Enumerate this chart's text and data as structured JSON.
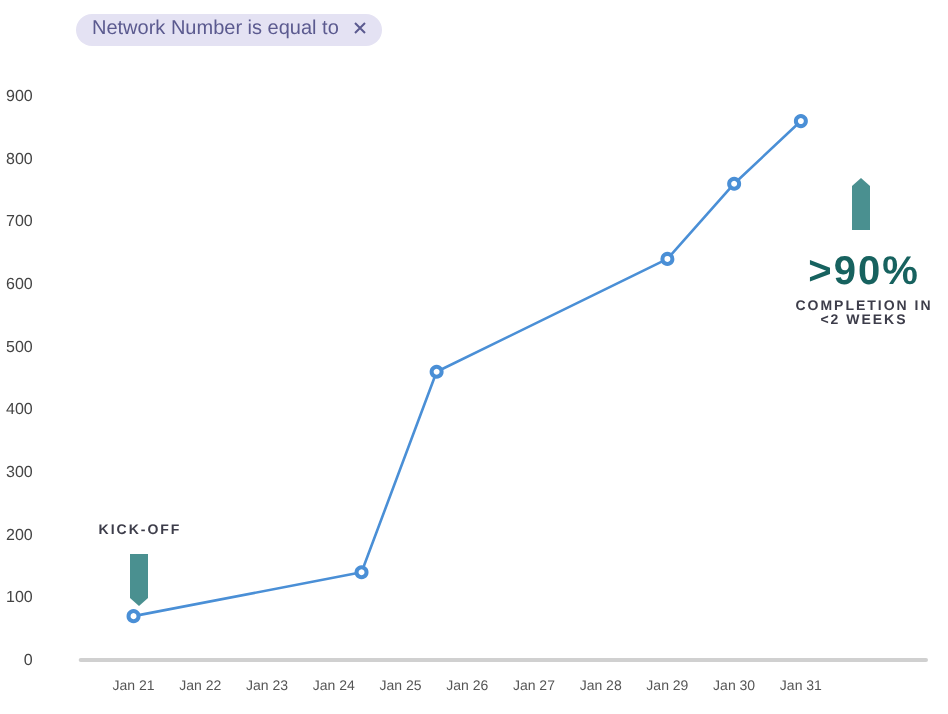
{
  "chart_data": {
    "type": "line",
    "x": [
      "--01-21",
      "--01-24T10:00",
      "--01-25T13:00",
      "--01-29",
      "--01-30",
      "--01-31"
    ],
    "series": [
      {
        "color": "#4a8fd6",
        "values": [
          70,
          140,
          460,
          640,
          760,
          860
        ]
      }
    ],
    "xlim": [
      "--01-20T05:00",
      "--02-01T21:00"
    ],
    "xticks": [
      {
        "value": "--01-21",
        "label": "Jan 21"
      },
      {
        "value": "--01-22",
        "label": "Jan 22"
      },
      {
        "value": "--01-23",
        "label": "Jan 23"
      },
      {
        "value": "--01-24",
        "label": "Jan 24"
      },
      {
        "value": "--01-25",
        "label": "Jan 25"
      },
      {
        "value": "--01-26",
        "label": "Jan 26"
      },
      {
        "value": "--01-27",
        "label": "Jan 27"
      },
      {
        "value": "--01-28",
        "label": "Jan 28"
      },
      {
        "value": "--01-29",
        "label": "Jan 29"
      },
      {
        "value": "--01-30",
        "label": "Jan 30"
      },
      {
        "value": "--01-31",
        "label": "Jan 31"
      }
    ],
    "ylim": [
      0,
      900
    ],
    "yticks": [
      0,
      100,
      200,
      300,
      400,
      500,
      600,
      700,
      800,
      900
    ],
    "grid": false,
    "marker": "circle",
    "line_style": "solid",
    "annotations": [
      "Network Number is equal to",
      "KICK-OFF",
      ">90%",
      "COMPLETION IN <2 WEEKS"
    ]
  }
}
